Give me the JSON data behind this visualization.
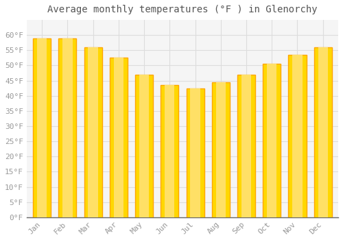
{
  "title": "Average monthly temperatures (°F ) in Glenorchy",
  "months": [
    "Jan",
    "Feb",
    "Mar",
    "Apr",
    "May",
    "Jun",
    "Jul",
    "Aug",
    "Sep",
    "Oct",
    "Nov",
    "Dec"
  ],
  "values": [
    59,
    59,
    56,
    52.5,
    47,
    43.5,
    42.5,
    44.5,
    47,
    50.5,
    53.5,
    56
  ],
  "bar_color": "#FFA500",
  "bar_highlight": "#FFD700",
  "background_color": "#FFFFFF",
  "plot_bg_color": "#F5F5F5",
  "grid_color": "#DDDDDD",
  "text_color": "#999999",
  "title_color": "#555555",
  "ylim": [
    0,
    65
  ],
  "yticks": [
    0,
    5,
    10,
    15,
    20,
    25,
    30,
    35,
    40,
    45,
    50,
    55,
    60
  ],
  "title_fontsize": 10,
  "tick_fontsize": 8,
  "bar_width": 0.7
}
